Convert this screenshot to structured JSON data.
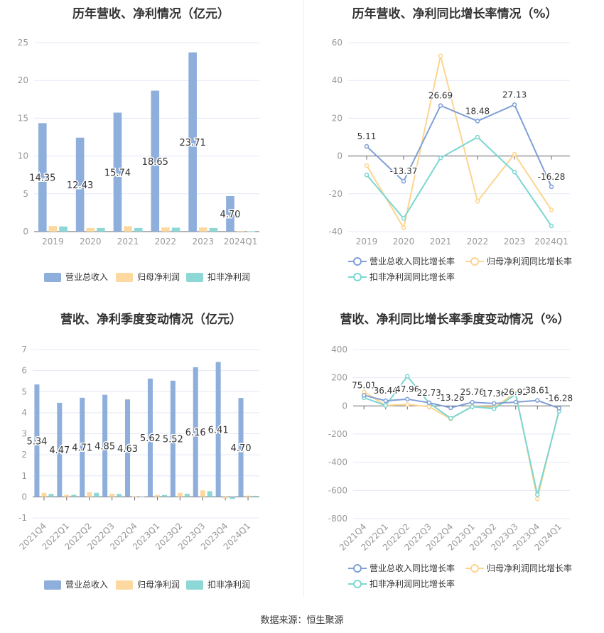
{
  "footer": "数据来源：恒生聚源",
  "colors": {
    "revenue": "#8eaedb",
    "net_profit": "#fdd9a0",
    "deducted_profit": "#8dd8d6",
    "grid": "#e3e8f5",
    "axis": "#666666"
  },
  "chart_data": [
    {
      "type": "bar",
      "title": "历年营收、净利情况（亿元）",
      "categories": [
        "2019",
        "2020",
        "2021",
        "2022",
        "2023",
        "2024Q1"
      ],
      "ylim": [
        0,
        25
      ],
      "yticks": [
        0,
        5,
        10,
        15,
        20,
        25
      ],
      "grid": true,
      "legend": "bottom",
      "series": [
        {
          "name": "营业总收入",
          "values": [
            14.35,
            12.43,
            15.74,
            18.65,
            23.71,
            4.7
          ],
          "labels": [
            "14.35",
            "12.43",
            "15.74",
            "18.65",
            "23.71",
            "4.70"
          ]
        },
        {
          "name": "归母净利润",
          "values": [
            0.75,
            0.48,
            0.72,
            0.55,
            0.55,
            0.08
          ]
        },
        {
          "name": "扣非净利润",
          "values": [
            0.68,
            0.48,
            0.48,
            0.52,
            0.48,
            0.05
          ]
        }
      ]
    },
    {
      "type": "line",
      "title": "历年营收、净利同比增长率情况（%）",
      "categories": [
        "2019",
        "2020",
        "2021",
        "2022",
        "2023",
        "2024Q1"
      ],
      "ylim": [
        -40,
        60
      ],
      "yticks": [
        -40,
        -20,
        0,
        20,
        40,
        60
      ],
      "grid": true,
      "legend": "bottom",
      "series": [
        {
          "name": "营业总收入同比增长率",
          "values": [
            5.11,
            -13.37,
            26.69,
            18.48,
            27.13,
            -16.28
          ],
          "labels": [
            "5.11",
            "-13.37",
            "26.69",
            "18.48",
            "27.13",
            "-16.28"
          ]
        },
        {
          "name": "归母净利润同比增长率",
          "values": [
            -5,
            -38,
            53,
            -24,
            1,
            -28.5
          ]
        },
        {
          "name": "扣非净利润同比增长率",
          "values": [
            -10,
            -33,
            -1,
            10,
            -8.5,
            -37
          ]
        }
      ]
    },
    {
      "type": "bar",
      "title": "营收、净利季度变动情况（亿元）",
      "categories": [
        "2021Q4",
        "2022Q1",
        "2022Q2",
        "2022Q3",
        "2022Q4",
        "2023Q1",
        "2023Q2",
        "2023Q3",
        "2023Q4",
        "2024Q1"
      ],
      "ylim": [
        -1,
        7
      ],
      "yticks": [
        -1,
        0,
        1,
        2,
        3,
        4,
        5,
        6,
        7
      ],
      "grid": true,
      "legend": "bottom",
      "series": [
        {
          "name": "营业总收入",
          "values": [
            5.34,
            4.47,
            4.71,
            4.85,
            4.63,
            5.62,
            5.52,
            6.16,
            6.41,
            4.7
          ],
          "labels": [
            "5.34",
            "4.47",
            "4.71",
            "4.85",
            "4.63",
            "5.62",
            "5.52",
            "6.16",
            "6.41",
            "4.70"
          ]
        },
        {
          "name": "归母净利润",
          "values": [
            0.19,
            0.1,
            0.22,
            0.15,
            0.02,
            0.09,
            0.19,
            0.31,
            -0.07,
            0.06
          ]
        },
        {
          "name": "扣非净利润",
          "values": [
            0.14,
            0.1,
            0.19,
            0.14,
            0.01,
            0.09,
            0.15,
            0.27,
            -0.1,
            0.05
          ]
        }
      ]
    },
    {
      "type": "line",
      "title": "营收、净利同比增长率季度变动情况（%）",
      "categories": [
        "2021Q4",
        "2022Q1",
        "2022Q2",
        "2022Q3",
        "2022Q4",
        "2023Q1",
        "2023Q2",
        "2023Q3",
        "2023Q4",
        "2024Q1"
      ],
      "ylim": [
        -800,
        400
      ],
      "yticks": [
        -800,
        -600,
        -400,
        -200,
        0,
        200,
        400
      ],
      "grid": true,
      "legend": "bottom",
      "series": [
        {
          "name": "营业总收入同比增长率",
          "values": [
            75.01,
            36.44,
            47.96,
            22.73,
            -13.28,
            25.76,
            17.36,
            26.92,
            38.61,
            -16.28
          ],
          "labels": [
            "75.01",
            "36.44",
            "47.96",
            "22.73",
            "-13.28",
            "25.76",
            "17.36",
            "26.92",
            "38.61",
            "-16.28"
          ]
        },
        {
          "name": "归母净利润同比增长率",
          "values": [
            100,
            3,
            10,
            -5,
            -92,
            -2,
            -10,
            92,
            -660,
            -25
          ]
        },
        {
          "name": "扣非净利润同比增长率",
          "values": [
            58,
            3,
            210,
            22,
            -88,
            -5,
            -20,
            82,
            -630,
            -38
          ]
        }
      ]
    }
  ]
}
